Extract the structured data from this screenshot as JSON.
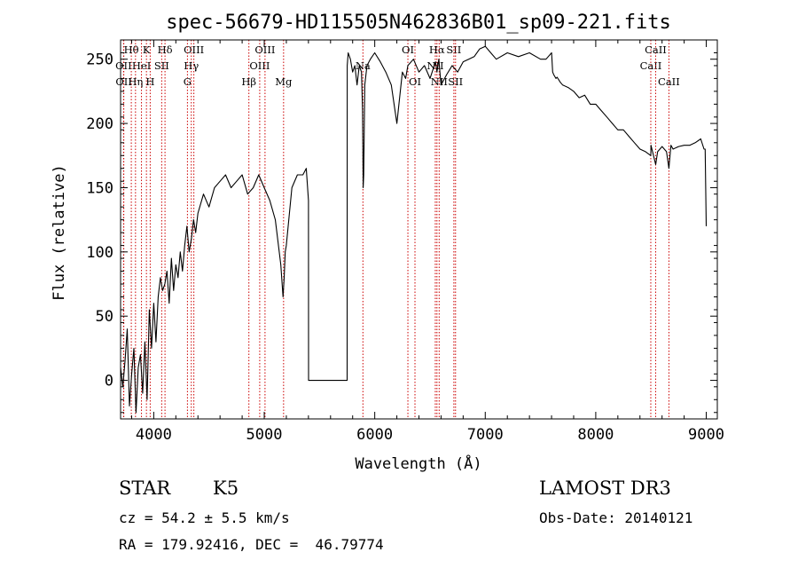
{
  "chart_data": {
    "type": "line",
    "title": "spec-56679-HD115505N462836B01_sp09-221.fits",
    "xlabel": "Wavelength (Å)",
    "ylabel": "Flux (relative)",
    "xlim": [
      3700,
      9100
    ],
    "ylim": [
      -30,
      265
    ],
    "xticks": [
      4000,
      5000,
      6000,
      7000,
      8000,
      9000
    ],
    "yticks": [
      0,
      50,
      100,
      150,
      200,
      250
    ],
    "grid": false,
    "series": [
      {
        "x": [
          3700,
          3720,
          3740,
          3760,
          3780,
          3800,
          3820,
          3840,
          3860,
          3880,
          3900,
          3920,
          3940,
          3960,
          3980,
          4000,
          4020,
          4040,
          4060,
          4080,
          4100,
          4120,
          4140,
          4160,
          4180,
          4200,
          4220,
          4240,
          4260,
          4280,
          4300,
          4320,
          4340,
          4360,
          4380,
          4400,
          4450,
          4500,
          4550,
          4600,
          4650,
          4700,
          4750,
          4800,
          4850,
          4900,
          4950,
          5000,
          5050,
          5100,
          5150,
          5170,
          5180,
          5190,
          5200,
          5250,
          5300,
          5350,
          5380,
          5400,
          5401,
          5500,
          5600,
          5700,
          5750,
          5751,
          5760,
          5780,
          5800,
          5820,
          5840,
          5860,
          5880,
          5890,
          5895,
          5900,
          5910,
          5930,
          5960,
          6000,
          6050,
          6100,
          6150,
          6200,
          6250,
          6280,
          6300,
          6350,
          6400,
          6450,
          6500,
          6550,
          6563,
          6580,
          6600,
          6650,
          6700,
          6750,
          6800,
          6850,
          6900,
          6950,
          7000,
          7050,
          7100,
          7200,
          7300,
          7400,
          7500,
          7550,
          7600,
          7610,
          7620,
          7640,
          7650,
          7680,
          7700,
          7750,
          7800,
          7850,
          7900,
          7950,
          8000,
          8050,
          8100,
          8150,
          8200,
          8250,
          8300,
          8350,
          8400,
          8450,
          8498,
          8500,
          8542,
          8560,
          8600,
          8640,
          8662,
          8680,
          8700,
          8750,
          8800,
          8850,
          8900,
          8950,
          8980,
          8990,
          8995,
          9000
        ],
        "y": [
          10,
          -5,
          15,
          40,
          -20,
          5,
          25,
          -25,
          10,
          20,
          -10,
          30,
          -15,
          55,
          25,
          60,
          30,
          65,
          80,
          70,
          75,
          85,
          60,
          95,
          70,
          90,
          80,
          100,
          85,
          105,
          120,
          100,
          110,
          125,
          115,
          130,
          145,
          135,
          150,
          155,
          160,
          150,
          155,
          160,
          145,
          150,
          160,
          150,
          140,
          125,
          90,
          65,
          80,
          100,
          105,
          150,
          160,
          160,
          165,
          140,
          0,
          0,
          0,
          0,
          0,
          245,
          255,
          250,
          240,
          245,
          230,
          245,
          240,
          210,
          150,
          160,
          230,
          245,
          250,
          255,
          248,
          240,
          230,
          200,
          240,
          235,
          245,
          250,
          240,
          245,
          235,
          248,
          240,
          250,
          230,
          238,
          245,
          240,
          248,
          250,
          252,
          258,
          260,
          255,
          250,
          255,
          252,
          255,
          250,
          250,
          255,
          240,
          238,
          235,
          236,
          232,
          230,
          228,
          225,
          220,
          222,
          215,
          215,
          210,
          205,
          200,
          195,
          195,
          190,
          185,
          180,
          178,
          175,
          183,
          168,
          178,
          182,
          178,
          165,
          183,
          180,
          182,
          183,
          183,
          185,
          188,
          180,
          180,
          150,
          120
        ]
      }
    ],
    "line_markers": [
      {
        "label": "Hθ",
        "x": 3797,
        "row": 0
      },
      {
        "label": "OII",
        "x": 3727,
        "row": 1
      },
      {
        "label": "OII",
        "x": 3729,
        "row": 2
      },
      {
        "label": "K",
        "x": 3934,
        "row": 0
      },
      {
        "label": "HeI",
        "x": 3889,
        "row": 1
      },
      {
        "label": "Hη",
        "x": 3835,
        "row": 2
      },
      {
        "label": "SII",
        "x": 4072,
        "row": 1
      },
      {
        "label": "H",
        "x": 3968,
        "row": 2
      },
      {
        "label": "Hδ",
        "x": 4102,
        "row": 0
      },
      {
        "label": "OIII",
        "x": 4363,
        "row": 0
      },
      {
        "label": "Hγ",
        "x": 4340,
        "row": 1
      },
      {
        "label": "G",
        "x": 4305,
        "row": 2
      },
      {
        "label": "Hβ",
        "x": 4861,
        "row": 2
      },
      {
        "label": "OIII",
        "x": 4959,
        "row": 1
      },
      {
        "label": "OIII",
        "x": 5007,
        "row": 0
      },
      {
        "label": "Mg",
        "x": 5175,
        "row": 2
      },
      {
        "label": "Na",
        "x": 5893,
        "row": 1
      },
      {
        "label": "OI",
        "x": 6300,
        "row": 0
      },
      {
        "label": "OI",
        "x": 6364,
        "row": 2
      },
      {
        "label": "NII",
        "x": 6548,
        "row": 1
      },
      {
        "label": "Hα",
        "x": 6563,
        "row": 0
      },
      {
        "label": "NII",
        "x": 6583,
        "row": 2
      },
      {
        "label": "SII",
        "x": 6716,
        "row": 0
      },
      {
        "label": "SII",
        "x": 6731,
        "row": 2
      },
      {
        "label": "CaII",
        "x": 8498,
        "row": 1
      },
      {
        "label": "CaII",
        "x": 8542,
        "row": 0
      },
      {
        "label": "CaII",
        "x": 8662,
        "row": 2
      }
    ]
  },
  "info": {
    "object_class": "STAR",
    "subclass": "K5",
    "survey": "LAMOST DR3",
    "redshift": "cz = 54.2 ± 5.5 km/s",
    "obs_date": "Obs-Date: 20140121",
    "coords": "RA = 179.92416, DEC =  46.79774"
  },
  "colors": {
    "spectrum": "#000000",
    "marker": "#cc0000"
  }
}
